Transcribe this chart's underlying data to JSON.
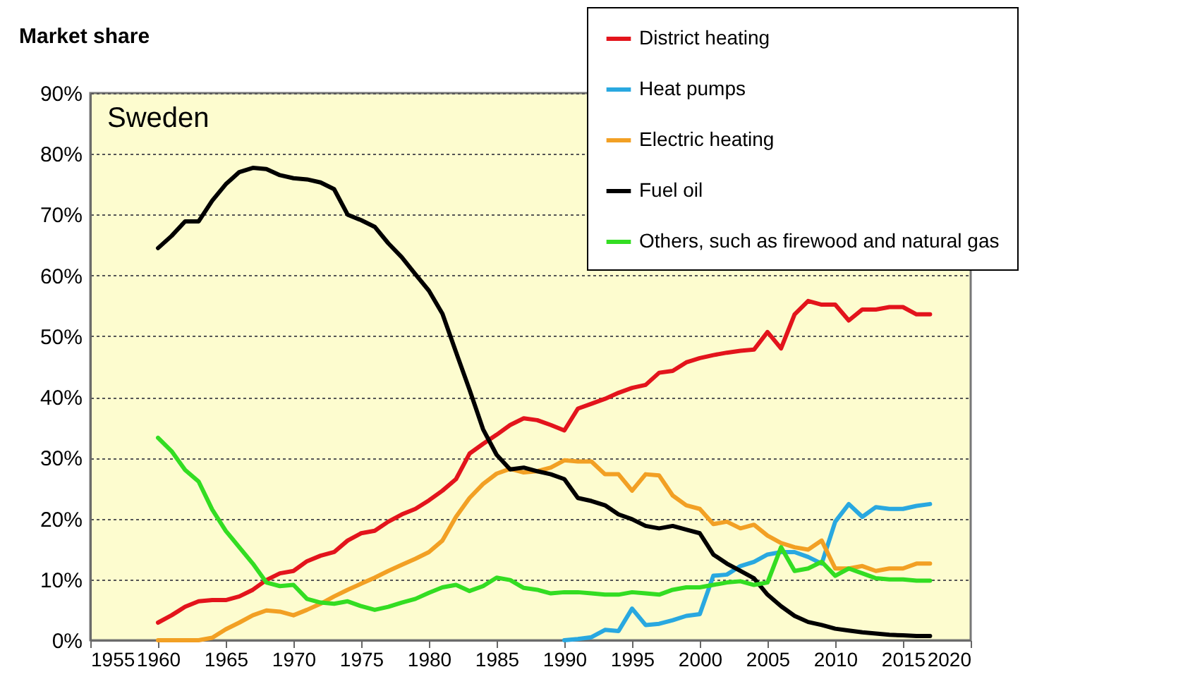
{
  "chart_data": {
    "type": "line",
    "ylabel": "Market share",
    "annotations": [
      "Sweden"
    ],
    "x": [
      1960,
      1961,
      1962,
      1963,
      1964,
      1965,
      1966,
      1967,
      1968,
      1969,
      1970,
      1971,
      1972,
      1973,
      1974,
      1975,
      1976,
      1977,
      1978,
      1979,
      1980,
      1981,
      1982,
      1983,
      1984,
      1985,
      1986,
      1987,
      1988,
      1989,
      1990,
      1991,
      1992,
      1993,
      1994,
      1995,
      1996,
      1997,
      1998,
      1999,
      2000,
      2001,
      2002,
      2003,
      2004,
      2005,
      2006,
      2007,
      2008,
      2009,
      2010,
      2011,
      2012,
      2013,
      2014,
      2015,
      2016,
      2017
    ],
    "series": [
      {
        "name": "District heating",
        "color": "#e3141c",
        "values": [
          2.9,
          4.1,
          5.5,
          6.4,
          6.6,
          6.6,
          7.2,
          8.3,
          9.9,
          11,
          11.4,
          13,
          13.9,
          14.5,
          16.4,
          17.6,
          18,
          19.5,
          20.7,
          21.6,
          23,
          24.6,
          26.5,
          30.7,
          32.3,
          33.8,
          35.4,
          36.5,
          36.2,
          35.4,
          34.5,
          38.1,
          38.9,
          39.7,
          40.7,
          41.5,
          42,
          44,
          44.3,
          45.7,
          46.4,
          46.9,
          47.3,
          47.6,
          47.8,
          50.7,
          48,
          53.6,
          55.8,
          55.2,
          55.2,
          52.6,
          54.4,
          54.4,
          54.8,
          54.8,
          53.6,
          53.6
        ]
      },
      {
        "name": "Heat pumps",
        "color": "#29a8e0",
        "values": [
          null,
          null,
          null,
          null,
          null,
          null,
          null,
          null,
          null,
          null,
          null,
          null,
          null,
          null,
          null,
          null,
          null,
          null,
          null,
          null,
          null,
          null,
          null,
          null,
          null,
          null,
          null,
          null,
          null,
          null,
          0,
          0.2,
          0.5,
          1.7,
          1.5,
          5.2,
          2.5,
          2.7,
          3.3,
          4,
          4.3,
          10.6,
          10.8,
          12.2,
          12.9,
          14.1,
          14.5,
          14.5,
          13.7,
          12.6,
          19.5,
          22.4,
          20.3,
          21.9,
          21.6,
          21.6,
          22.1,
          22.4
        ]
      },
      {
        "name": "Electric heating",
        "color": "#f2a024",
        "values": [
          0,
          0,
          0,
          0,
          0.4,
          1.8,
          2.9,
          4.1,
          4.9,
          4.7,
          4.1,
          5,
          6,
          7.2,
          8.3,
          9.3,
          10.3,
          11.4,
          12.4,
          13.4,
          14.5,
          16.4,
          20.3,
          23.4,
          25.7,
          27.4,
          28.2,
          27.6,
          27.8,
          28.4,
          29.6,
          29.4,
          29.4,
          27.3,
          27.3,
          24.6,
          27.3,
          27.1,
          23.8,
          22.2,
          21.6,
          19.1,
          19.5,
          18.4,
          19,
          17.2,
          16,
          15.3,
          14.9,
          16.4,
          11.8,
          11.8,
          12.2,
          11.4,
          11.8,
          11.8,
          12.6,
          12.6
        ]
      },
      {
        "name": "Fuel oil",
        "color": "#000000",
        "values": [
          64.5,
          66.5,
          68.9,
          68.9,
          72.3,
          75,
          77,
          77.7,
          77.5,
          76.5,
          76,
          75.8,
          75.3,
          74.2,
          70,
          69.1,
          68,
          65.3,
          63,
          60.2,
          57.5,
          53.7,
          47.4,
          41.2,
          34.7,
          30.5,
          28.1,
          28.4,
          27.8,
          27.3,
          26.5,
          23.4,
          22.9,
          22.2,
          20.7,
          19.9,
          18.8,
          18.4,
          18.8,
          18.2,
          17.6,
          14.1,
          12.6,
          11.4,
          10.2,
          7.5,
          5.6,
          4,
          3,
          2.5,
          1.9,
          1.6,
          1.3,
          1.1,
          0.9,
          0.8,
          0.7,
          0.7
        ]
      },
      {
        "name": "Others, such as firewood and natural gas",
        "color": "#33dd22",
        "values": [
          33.3,
          31.1,
          28,
          26.1,
          21.5,
          18,
          15.3,
          12.6,
          9.5,
          8.9,
          9.1,
          6.8,
          6.2,
          6,
          6.4,
          5.6,
          5,
          5.5,
          6.2,
          6.8,
          7.8,
          8.7,
          9.1,
          8.1,
          8.9,
          10.3,
          9.9,
          8.6,
          8.3,
          7.7,
          7.9,
          7.9,
          7.7,
          7.5,
          7.5,
          7.9,
          7.7,
          7.5,
          8.3,
          8.7,
          8.7,
          9.1,
          9.5,
          9.7,
          9.1,
          9.5,
          15.3,
          11.4,
          11.8,
          12.9,
          10.6,
          11.8,
          11,
          10.2,
          10,
          10,
          9.8,
          9.8
        ]
      }
    ],
    "xlim": [
      1955,
      2020
    ],
    "xticks": [
      1955,
      1960,
      1965,
      1970,
      1975,
      1980,
      1985,
      1990,
      1995,
      2000,
      2005,
      2010,
      2015,
      2020
    ],
    "ylim": [
      0,
      90
    ],
    "yticks": [
      {
        "value": 0,
        "label": "0%"
      },
      {
        "value": 10,
        "label": "10%"
      },
      {
        "value": 20,
        "label": "20%"
      },
      {
        "value": 30,
        "label": "30%"
      },
      {
        "value": 40,
        "label": "40%"
      },
      {
        "value": 50,
        "label": "50%"
      },
      {
        "value": 60,
        "label": "60%"
      },
      {
        "value": 70,
        "label": "70%"
      },
      {
        "value": 80,
        "label": "80%"
      },
      {
        "value": 90,
        "label": "90%"
      }
    ],
    "grid": "y",
    "legend": "top right",
    "line_style": "solid"
  }
}
